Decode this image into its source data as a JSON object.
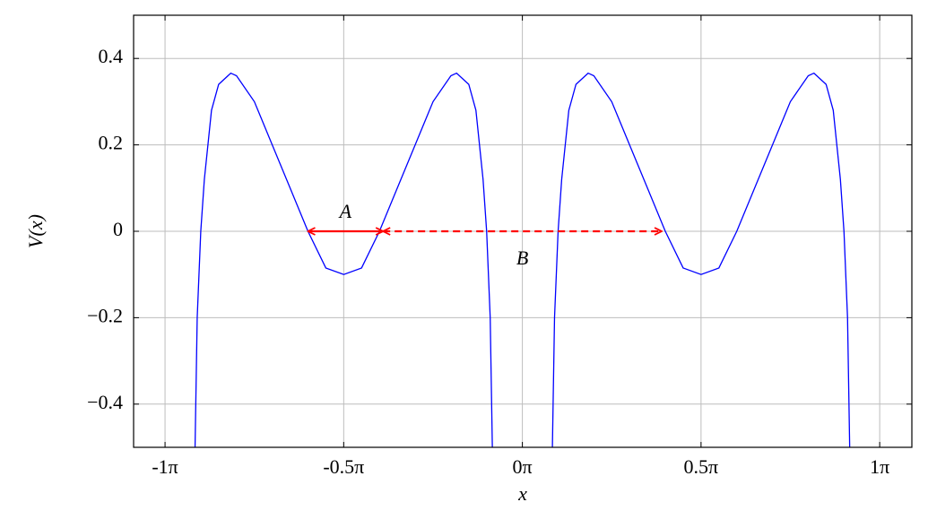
{
  "chart_data": {
    "type": "line",
    "x_label": "x",
    "y_label": "V(x)",
    "x": [
      -0.916,
      -0.91,
      -0.9,
      -0.89,
      -0.87,
      -0.85,
      -0.816,
      -0.8,
      -0.75,
      -0.7,
      -0.65,
      -0.6,
      -0.55,
      -0.5,
      -0.45,
      -0.4,
      -0.35,
      -0.3,
      -0.25,
      -0.2,
      -0.184,
      -0.15,
      -0.13,
      -0.11,
      -0.1,
      -0.09,
      -0.084,
      0,
      0.084,
      0.09,
      0.1,
      0.11,
      0.13,
      0.15,
      0.184,
      0.2,
      0.25,
      0.3,
      0.35,
      0.4,
      0.45,
      0.5,
      0.55,
      0.6,
      0.65,
      0.7,
      0.75,
      0.8,
      0.816,
      0.85,
      0.87,
      0.89,
      0.9,
      0.91,
      0.916
    ],
    "series": [
      {
        "color": "#0000ff",
        "values": [
          -0.5,
          -0.2,
          0,
          0.12,
          0.28,
          0.34,
          0.366,
          0.36,
          0.3,
          0.2,
          0.1,
          0,
          -0.085,
          -0.1,
          -0.085,
          0,
          0.1,
          0.2,
          0.3,
          0.36,
          0.366,
          0.34,
          0.28,
          0.12,
          0,
          -0.2,
          -0.5,
          null,
          -0.5,
          -0.2,
          0,
          0.12,
          0.28,
          0.34,
          0.366,
          0.36,
          0.3,
          0.2,
          0.1,
          0,
          -0.085,
          -0.1,
          -0.085,
          0,
          0.1,
          0.2,
          0.3,
          0.36,
          0.366,
          0.34,
          0.28,
          0.12,
          0,
          -0.2,
          -0.5
        ]
      }
    ],
    "xlim": [
      -1.088,
      1.09
    ],
    "ylim": [
      -0.5,
      0.5
    ],
    "xticks": [
      {
        "value": -1,
        "label": "-1π"
      },
      {
        "value": -0.5,
        "label": "-0.5π"
      },
      {
        "value": 0,
        "label": "0π"
      },
      {
        "value": 0.5,
        "label": "0.5π"
      },
      {
        "value": 1,
        "label": "1π"
      }
    ],
    "yticks": [
      {
        "value": -0.4,
        "label": "−0.4"
      },
      {
        "value": -0.2,
        "label": "−0.2"
      },
      0,
      0.2,
      0.4
    ],
    "grid": true,
    "annotations": [
      {
        "label": "A",
        "x1": -0.6,
        "x2": -0.39,
        "y": 0,
        "dashed": false,
        "color": "#ff0000",
        "side": "above"
      },
      {
        "label": "B",
        "x1": -0.39,
        "x2": 0.39,
        "y": 0,
        "dashed": true,
        "color": "#ff0000",
        "side": "below"
      }
    ]
  }
}
